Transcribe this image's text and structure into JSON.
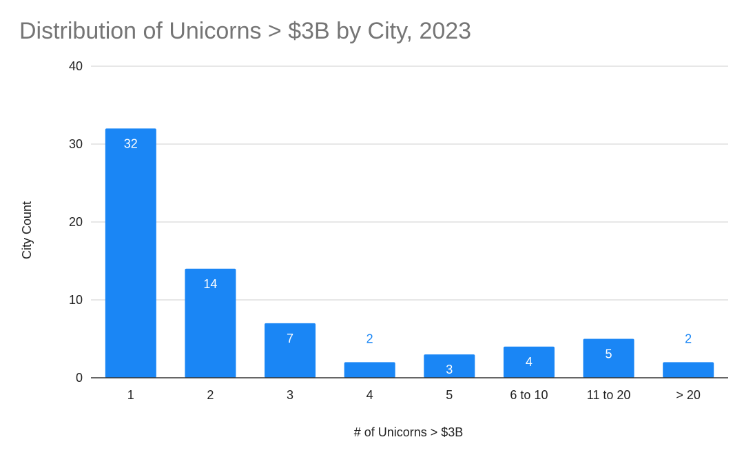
{
  "chart_data": {
    "type": "bar",
    "title": "Distribution of Unicorns > $3B by City, 2023",
    "xlabel": "# of Unicorns > $3B",
    "ylabel": "City Count",
    "categories": [
      "1",
      "2",
      "3",
      "4",
      "5",
      "6 to 10",
      "11 to 20",
      "> 20"
    ],
    "values": [
      32,
      14,
      7,
      2,
      3,
      4,
      5,
      2
    ],
    "ylim": [
      0,
      40
    ],
    "yticks": [
      0,
      10,
      20,
      30,
      40
    ],
    "grid": true,
    "legend": "none",
    "bar_color": "#1a86f5",
    "title_color": "#757575"
  }
}
